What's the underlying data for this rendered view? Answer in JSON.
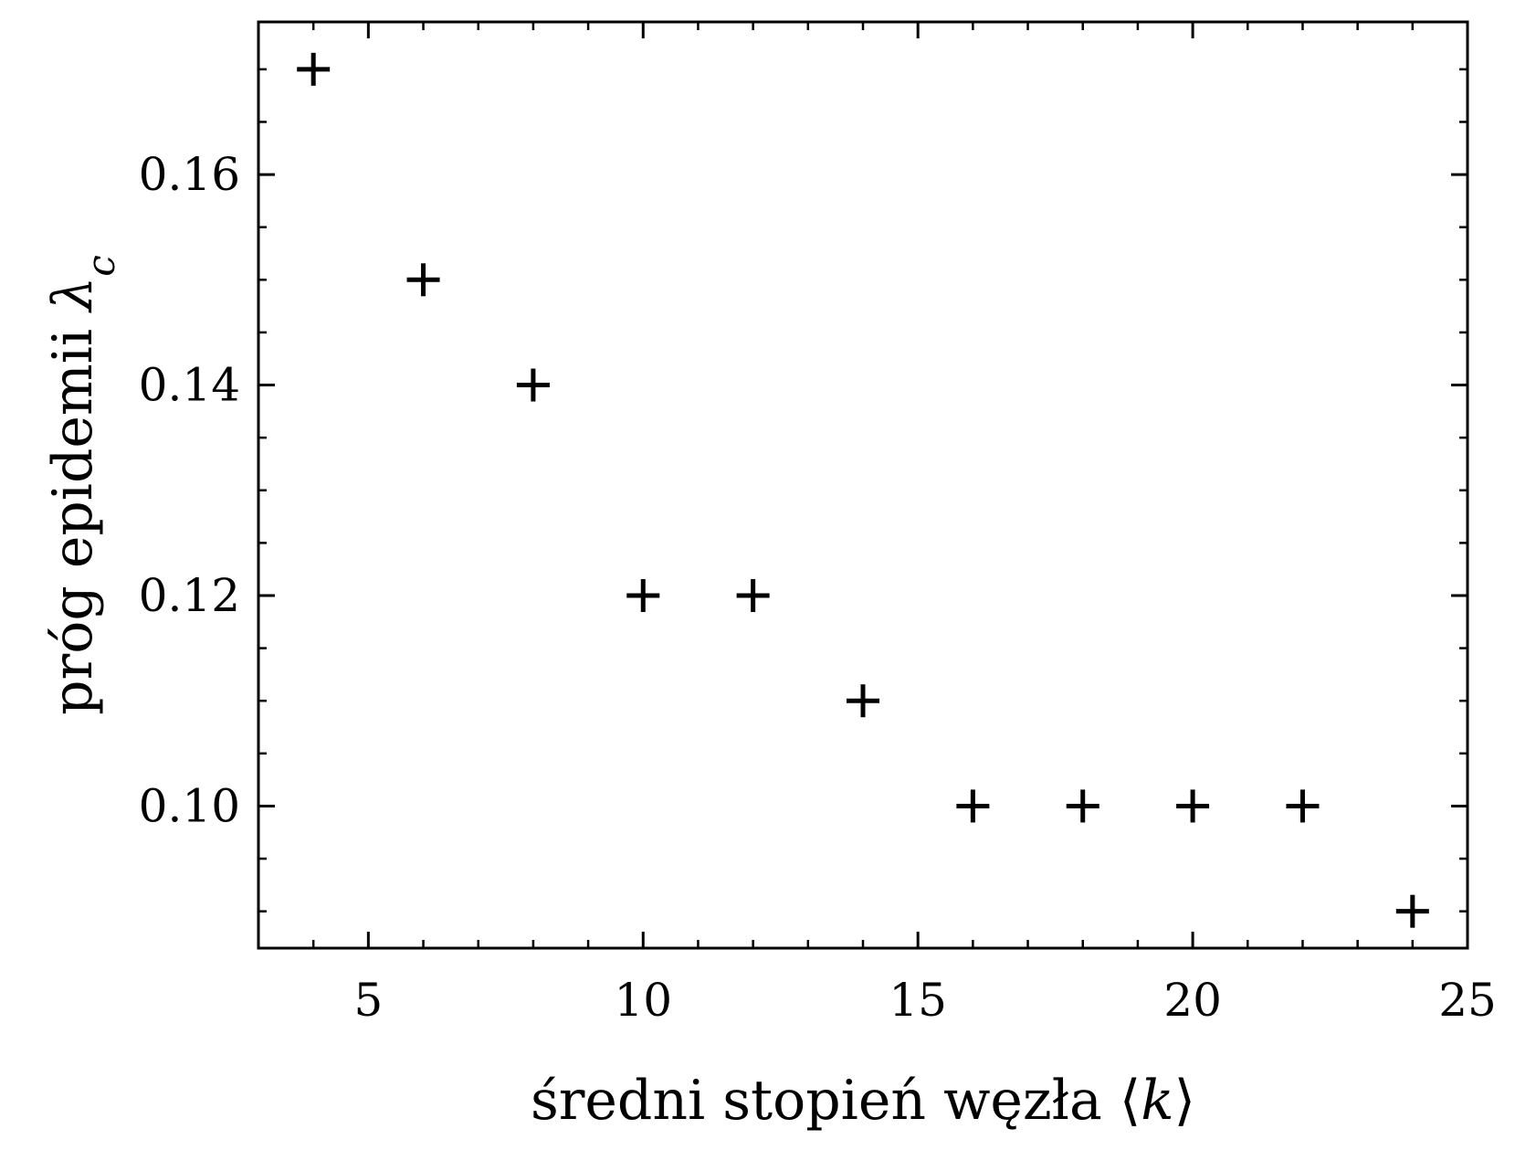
{
  "chart_data": {
    "type": "scatter",
    "marker": "plus",
    "marker_color": "#000000",
    "xlabel": {
      "text": "średni stopień węzła",
      "symbol_open": "⟨",
      "symbol_var": "k",
      "symbol_close": "⟩"
    },
    "ylabel": {
      "text": "próg epidemii",
      "symbol_var": "λ",
      "symbol_sub": "c"
    },
    "xlim": [
      3,
      25
    ],
    "ylim": [
      0.0865,
      0.1745
    ],
    "xticks": [
      5,
      10,
      15,
      20,
      25
    ],
    "xtick_labels": [
      "5",
      "10",
      "15",
      "20",
      "25"
    ],
    "x_minor_step": 1,
    "yticks": [
      0.1,
      0.12,
      0.14,
      0.16
    ],
    "ytick_labels": [
      "0.10",
      "0.12",
      "0.14",
      "0.16"
    ],
    "y_minor_step": 0.005,
    "grid": false,
    "points": [
      {
        "x": 4,
        "y": 0.17
      },
      {
        "x": 6,
        "y": 0.15
      },
      {
        "x": 8,
        "y": 0.14
      },
      {
        "x": 10,
        "y": 0.12
      },
      {
        "x": 12,
        "y": 0.12
      },
      {
        "x": 14,
        "y": 0.11
      },
      {
        "x": 16,
        "y": 0.1
      },
      {
        "x": 18,
        "y": 0.1
      },
      {
        "x": 20,
        "y": 0.1
      },
      {
        "x": 22,
        "y": 0.1
      },
      {
        "x": 24,
        "y": 0.09
      }
    ]
  }
}
